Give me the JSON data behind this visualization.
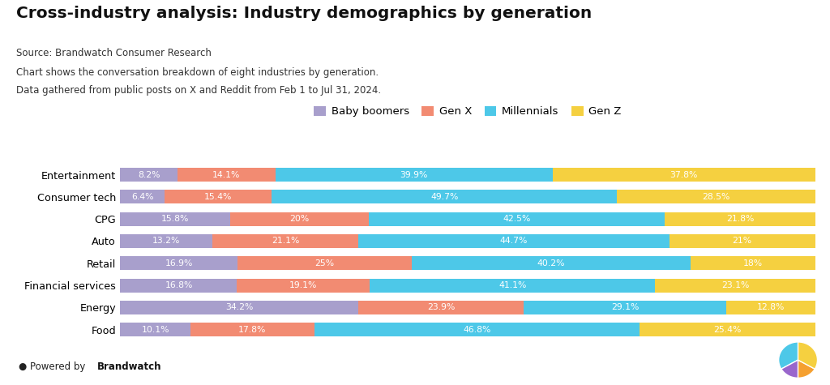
{
  "title": "Cross-industry analysis: Industry demographics by generation",
  "source_line": "Source: Brandwatch Consumer Research",
  "desc_line1": "Chart shows the conversation breakdown of eight industries by generation.",
  "desc_line2": "Data gathered from public posts on X and Reddit from Feb 1 to Jul 31, 2024.",
  "categories": [
    "Entertainment",
    "Consumer tech",
    "CPG",
    "Auto",
    "Retail",
    "Financial services",
    "Energy",
    "Food"
  ],
  "generations": [
    "Baby boomers",
    "Gen X",
    "Millennials",
    "Gen Z"
  ],
  "colors": [
    "#a89fcc",
    "#f28b72",
    "#4dc8e8",
    "#f5d040"
  ],
  "data": [
    [
      8.2,
      14.1,
      39.9,
      37.8
    ],
    [
      6.4,
      15.4,
      49.7,
      28.5
    ],
    [
      15.8,
      20.0,
      42.5,
      21.8
    ],
    [
      13.2,
      21.1,
      44.7,
      21.0
    ],
    [
      16.9,
      25.0,
      40.2,
      18.0
    ],
    [
      16.8,
      19.1,
      41.1,
      23.1
    ],
    [
      34.2,
      23.9,
      29.1,
      12.8
    ],
    [
      10.1,
      17.8,
      46.8,
      25.4
    ]
  ],
  "logo_colors": [
    "#4dc8e8",
    "#a89fcc",
    "#f5a030",
    "#f5d040"
  ],
  "logo_angles": [
    90,
    210,
    330
  ],
  "background_color": "#ffffff"
}
